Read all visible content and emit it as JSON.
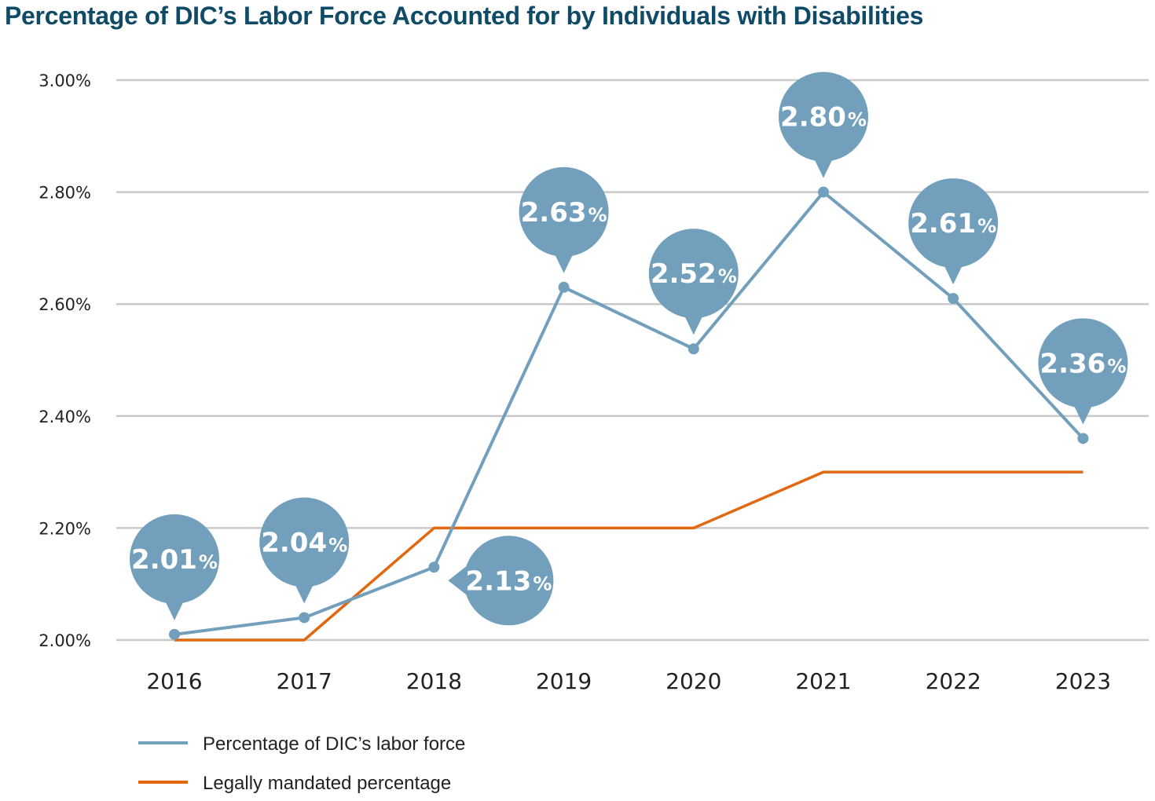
{
  "chart_data": {
    "type": "line",
    "title": "Percentage of DIC’s Labor Force Accounted for by Individuals with Disabilities",
    "categories": [
      "2016",
      "2017",
      "2018",
      "2019",
      "2020",
      "2021",
      "2022",
      "2023"
    ],
    "ylim": [
      2.0,
      3.0
    ],
    "yticks": [
      2.0,
      2.2,
      2.4,
      2.6,
      2.8,
      3.0
    ],
    "ytick_labels": [
      "2.00%",
      "2.20%",
      "2.40%",
      "2.60%",
      "2.80%",
      "3.00%"
    ],
    "grid": true,
    "legend_position": "bottom-left",
    "series": [
      {
        "name": "Percentage of DIC’s labor force",
        "color": "#729fbb",
        "values": [
          2.01,
          2.04,
          2.13,
          2.63,
          2.52,
          2.8,
          2.61,
          2.36
        ],
        "labels": [
          "2.01",
          "2.04",
          "2.13",
          "2.63",
          "2.52",
          "2.80",
          "2.61",
          "2.36"
        ],
        "label_suffix": "%"
      },
      {
        "name": "Legally mandated percentage",
        "color": "#e2670f",
        "values": [
          2.0,
          2.0,
          2.2,
          2.2,
          2.2,
          2.3,
          2.3,
          2.3
        ]
      }
    ]
  }
}
